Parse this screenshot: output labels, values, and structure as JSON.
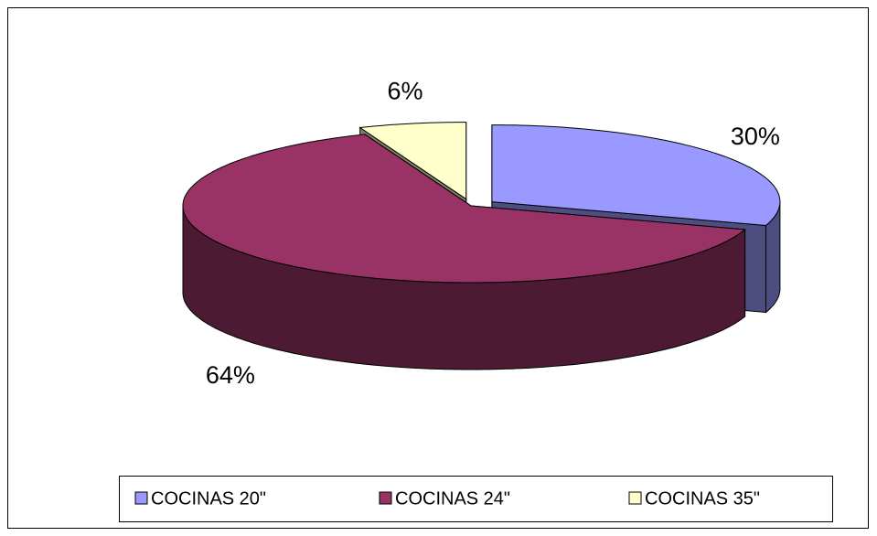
{
  "chart_data": {
    "type": "pie",
    "categories": [
      "COCINAS 20\"",
      "COCINAS 24\"",
      "COCINAS 35\""
    ],
    "values": [
      30,
      64,
      6
    ],
    "value_labels": [
      "30%",
      "64%",
      "6%"
    ],
    "colors": [
      "#9999ff",
      "#993366",
      "#ffffcc"
    ],
    "legend": "bottom",
    "view": "3d",
    "exploded": true
  }
}
